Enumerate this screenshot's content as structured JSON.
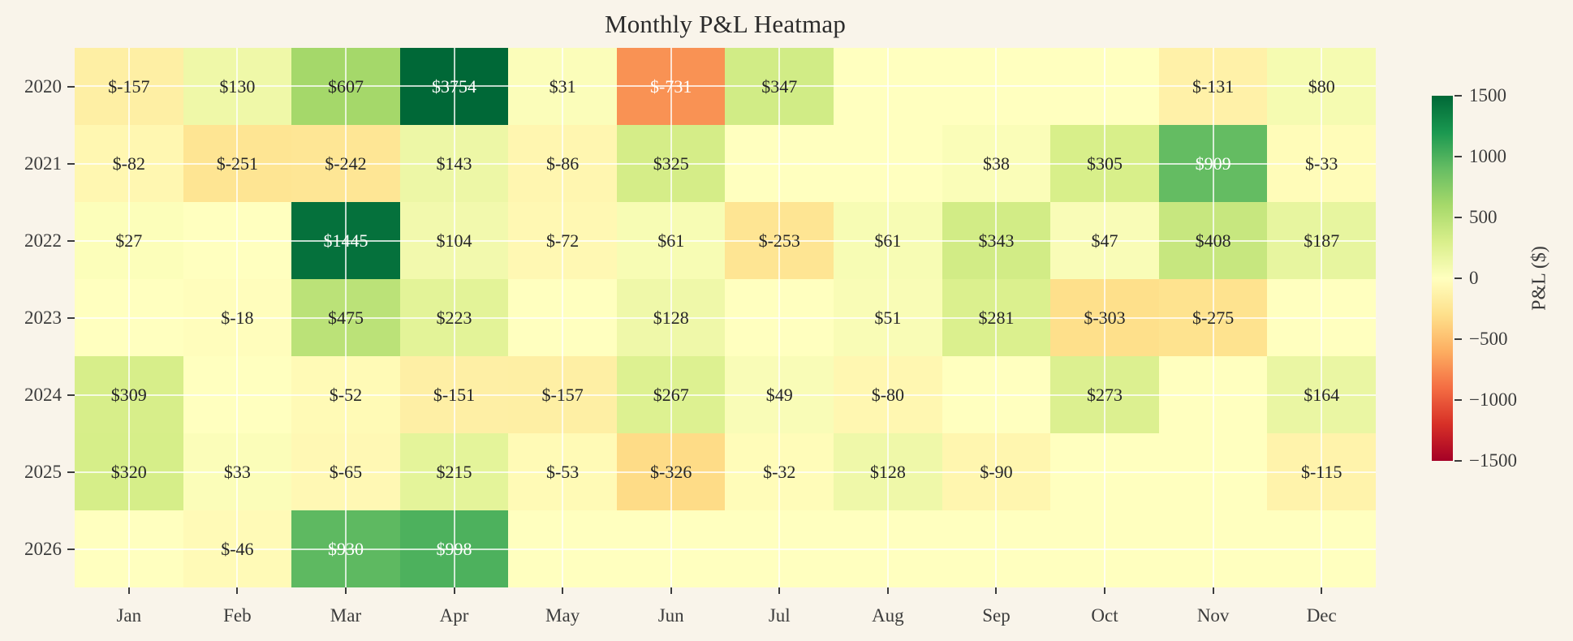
{
  "title": "Monthly P&L Heatmap",
  "background_color": "#f9f4ea",
  "chart_data": {
    "type": "heatmap",
    "title": "Monthly P&L Heatmap",
    "x_categories": [
      "Jan",
      "Feb",
      "Mar",
      "Apr",
      "May",
      "Jun",
      "Jul",
      "Aug",
      "Sep",
      "Oct",
      "Nov",
      "Dec"
    ],
    "y_categories": [
      "2020",
      "2021",
      "2022",
      "2023",
      "2024",
      "2025",
      "2026"
    ],
    "values": [
      [
        -157,
        130,
        607,
        3754,
        31,
        -731,
        347,
        null,
        null,
        null,
        -131,
        80
      ],
      [
        -82,
        -251,
        -242,
        143,
        -86,
        325,
        null,
        null,
        38,
        305,
        909,
        -33
      ],
      [
        27,
        null,
        1445,
        104,
        -72,
        61,
        -253,
        61,
        343,
        47,
        408,
        187
      ],
      [
        null,
        -18,
        475,
        223,
        null,
        128,
        null,
        51,
        281,
        -303,
        -275,
        null
      ],
      [
        309,
        null,
        -52,
        -151,
        -157,
        267,
        49,
        -80,
        null,
        273,
        null,
        164
      ],
      [
        320,
        33,
        -65,
        215,
        -53,
        -326,
        -32,
        128,
        -90,
        null,
        null,
        -115
      ],
      [
        null,
        -46,
        930,
        998,
        null,
        null,
        null,
        null,
        null,
        null,
        null,
        null
      ]
    ],
    "value_prefix": "$",
    "vmin": -1500,
    "vmax": 1500,
    "grid": true,
    "colormap_name": "RdYlGn",
    "colormap_anchors": [
      "#a50026",
      "#d73027",
      "#f46d43",
      "#fdae61",
      "#fee08b",
      "#ffffbf",
      "#d9ef8b",
      "#a6d96a",
      "#66bd63",
      "#1a9850",
      "#006837"
    ],
    "annotation_dark_color": "#262626",
    "annotation_light_color": "#ffffff",
    "colorbar": {
      "label": "P&L ($)",
      "ticks": [
        "1500",
        "1000",
        "500",
        "0",
        "−500",
        "−1000",
        "−1500"
      ],
      "legend_position": "right"
    }
  }
}
